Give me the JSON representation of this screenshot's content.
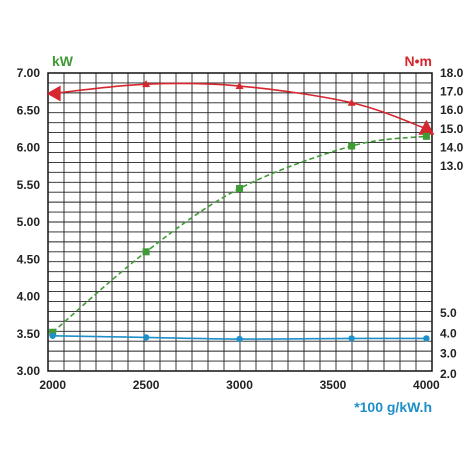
{
  "chart_data": {
    "type": "line",
    "x_ticks": [
      "2000",
      "2500",
      "3000",
      "3500",
      "4000"
    ],
    "xlim": [
      1975,
      4030
    ],
    "left_axis": {
      "unit": "kW",
      "color": "#3f9c35",
      "ylim": [
        3.0,
        7.0
      ],
      "ticks": [
        "3.00",
        "3.50",
        "4.00",
        "4.50",
        "5.00",
        "5.50",
        "6.00",
        "6.50",
        "7.00"
      ]
    },
    "right_axis_torque": {
      "unit": "N•m",
      "color": "#d6262e",
      "ticks": [
        "13.0",
        "14.0",
        "15.0",
        "16.0",
        "17.0",
        "18.0"
      ]
    },
    "right_axis_consumption": {
      "unit": "*100 g/kW.h",
      "color": "#1e8fc8",
      "ticks": [
        "2.0",
        "3.0",
        "4.0",
        "5.0"
      ]
    },
    "series": [
      {
        "color": "#d6262e",
        "marker": "triangle",
        "axis": "torque",
        "x": [
          2000,
          2500,
          3000,
          3600,
          4000
        ],
        "y": [
          16.9,
          17.4,
          17.3,
          16.4,
          15.0
        ]
      },
      {
        "color": "#3f9c35",
        "marker": "square",
        "axis": "power",
        "x": [
          2000,
          2500,
          3000,
          3600,
          4000
        ],
        "y": [
          3.52,
          4.6,
          5.45,
          6.02,
          6.15
        ]
      },
      {
        "color": "#1e8fc8",
        "marker": "circle",
        "axis": "consumption",
        "x": [
          2000,
          2500,
          3000,
          3600,
          4000
        ],
        "y": [
          3.88,
          3.8,
          3.72,
          3.75,
          3.75
        ]
      }
    ],
    "grid": true
  }
}
